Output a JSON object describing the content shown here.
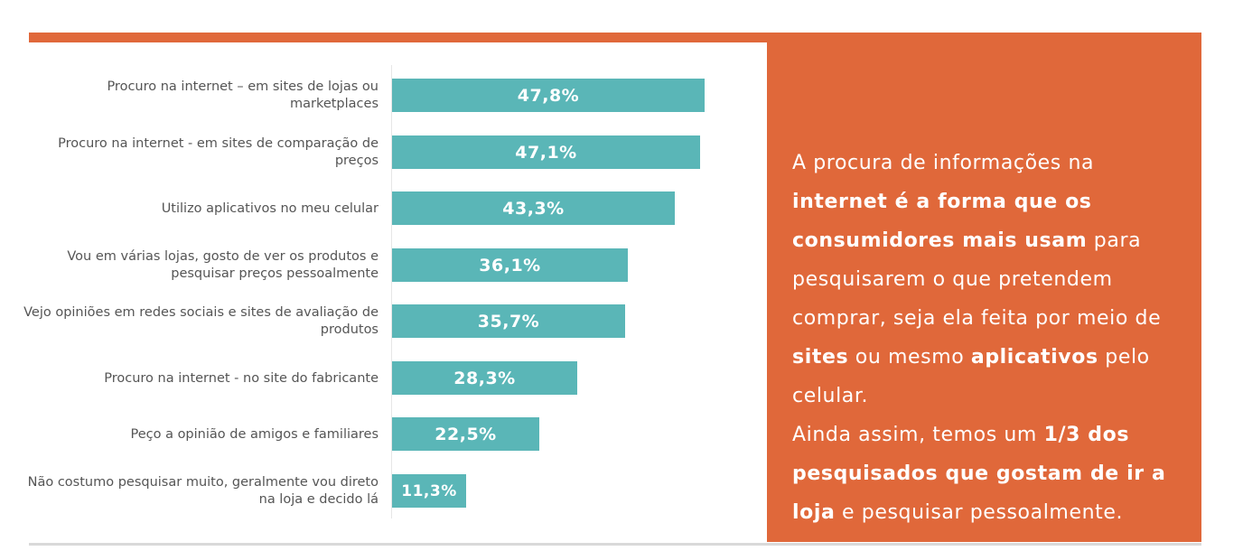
{
  "colors": {
    "accent": "#e0683a",
    "bar": "#5ab6b7",
    "label": "#555555"
  },
  "chart_data": {
    "type": "bar",
    "orientation": "horizontal",
    "categories": [
      "Procuro na internet – em sites de lojas ou marketplaces",
      "Procuro na internet - em sites de comparação de preços",
      "Utilizo aplicativos no meu celular",
      "Vou em várias lojas, gosto de ver os produtos e pesquisar preços pessoalmente",
      "Vejo opiniões em redes sociais e sites de avaliação de produtos",
      "Procuro na internet - no site do fabricante",
      "Peço a opinião de amigos e familiares",
      "Não costumo pesquisar muito, geralmente vou direto na loja e decido lá"
    ],
    "values": [
      47.8,
      47.1,
      43.3,
      36.1,
      35.7,
      28.3,
      22.5,
      11.3
    ],
    "value_labels": [
      "47,8%",
      "47,1%",
      "43,3%",
      "36,1%",
      "35,7%",
      "28,3%",
      "22,5%",
      "11,3%"
    ],
    "unit": "%",
    "title": "",
    "xlabel": "",
    "ylabel": "",
    "grid": false,
    "legend": "none"
  },
  "info_box": {
    "parts": [
      {
        "text": "A procura de informações na ",
        "bold": false
      },
      {
        "text": "internet é a forma que os consumidores mais usam",
        "bold": true
      },
      {
        "text": " para pesquisarem o que pretendem comprar, seja ela feita por meio de ",
        "bold": false
      },
      {
        "text": "sites",
        "bold": true
      },
      {
        "text": " ou mesmo ",
        "bold": false
      },
      {
        "text": "aplicativos",
        "bold": true
      },
      {
        "text": " pelo celular.",
        "bold": false
      },
      {
        "text": "\n",
        "bold": false
      },
      {
        "text": "Ainda assim, temos um ",
        "bold": false
      },
      {
        "text": "1/3 dos pesquisados que gostam de ir a loja",
        "bold": true
      },
      {
        "text": " e pesquisar pessoalmente.",
        "bold": false
      }
    ]
  }
}
